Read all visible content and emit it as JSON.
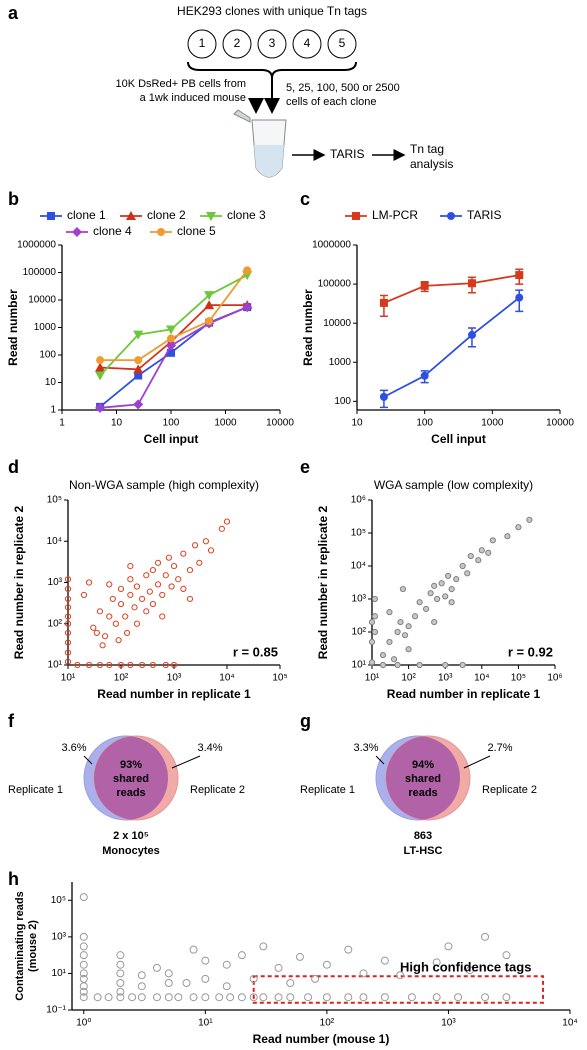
{
  "panel_labels": [
    "a",
    "b",
    "c",
    "d",
    "e",
    "f",
    "g",
    "h"
  ],
  "schematic": {
    "title": "HEK293 clones with unique Tn tags",
    "clones": [
      "1",
      "2",
      "3",
      "4",
      "5"
    ],
    "left_text": [
      "10K DsRed+ PB cells from",
      "a 1wk induced mouse"
    ],
    "right_text": [
      "5, 25, 100, 500 or 2500",
      "cells of each clone"
    ],
    "step1": "TARIS",
    "step2": [
      "Tn tag",
      "analysis"
    ]
  },
  "venn": [
    {
      "center": [
        "93%",
        "shared",
        "reads"
      ],
      "left_pct": "3.6%",
      "right_pct": "3.4%",
      "left_name": "Replicate 1",
      "right_name": "Replicate 2",
      "caption": [
        "2 x 10⁵",
        "Monocytes"
      ]
    },
    {
      "center": [
        "94%",
        "shared",
        "reads"
      ],
      "left_pct": "3.3%",
      "right_pct": "2.7%",
      "left_name": "Replicate 1",
      "right_name": "Replicate 2",
      "caption": [
        "863",
        "LT-HSC"
      ]
    }
  ],
  "chart_data": [
    {
      "type": "line",
      "xlabel": "Cell input",
      "ylabel": "Read number",
      "xscale": "log",
      "yscale": "log",
      "x": [
        5,
        25,
        100,
        500,
        2500
      ],
      "xlim": [
        1,
        10000
      ],
      "xticks": [
        1,
        10,
        100,
        1000,
        10000
      ],
      "ylim": [
        1,
        1000000
      ],
      "yticks": [
        1,
        10,
        100,
        1000,
        10000,
        100000,
        1000000
      ],
      "series": [
        {
          "name": "clone 1",
          "color": "#2f4fe0",
          "marker": "square",
          "values": [
            1.3,
            18,
            120,
            1500,
            5500
          ]
        },
        {
          "name": "clone 2",
          "color": "#d0301a",
          "marker": "triangle",
          "values": [
            35,
            30,
            300,
            6500,
            6500
          ]
        },
        {
          "name": "clone 3",
          "color": "#6cc83a",
          "marker": "invtriangle",
          "values": [
            18,
            550,
            850,
            15000,
            80000
          ]
        },
        {
          "name": "clone 4",
          "color": "#a040d0",
          "marker": "diamond",
          "values": [
            1.2,
            1.6,
            220,
            1400,
            5500
          ]
        },
        {
          "name": "clone 5",
          "color": "#f09a30",
          "marker": "circle",
          "values": [
            65,
            65,
            400,
            1700,
            120000
          ]
        }
      ]
    },
    {
      "type": "line",
      "xlabel": "Cell input",
      "ylabel": "Read number",
      "xscale": "log",
      "yscale": "log",
      "x": [
        25,
        100,
        500,
        2500
      ],
      "xlim": [
        10,
        10000
      ],
      "xticks": [
        10,
        100,
        1000,
        10000
      ],
      "ylim": [
        60,
        1000000
      ],
      "yticks": [
        100,
        1000,
        10000,
        100000,
        1000000
      ],
      "series": [
        {
          "name": "LM-PCR",
          "color": "#d6391c",
          "marker": "square",
          "values": [
            33000,
            90000,
            105000,
            170000
          ],
          "errors": [
            18000,
            25000,
            45000,
            70000
          ]
        },
        {
          "name": "TARIS",
          "color": "#2f4fe0",
          "marker": "circle",
          "values": [
            130,
            450,
            5000,
            45000
          ],
          "errors": [
            60,
            150,
            2500,
            25000
          ]
        }
      ]
    },
    {
      "type": "scatter",
      "title": "Non-WGA sample (high complexity)",
      "annotation": "r = 0.85",
      "xlabel": "Read number in replicate 1",
      "ylabel": "Read number in replicate 2",
      "xscale": "log",
      "yscale": "log",
      "color": "#e0401c",
      "fill": "none",
      "xlim": [
        10,
        100000
      ],
      "xticks": [
        {
          "value": 10,
          "label": "10¹"
        },
        {
          "value": 100,
          "label": "10²"
        },
        {
          "value": 1000,
          "label": "10³"
        },
        {
          "value": 10000,
          "label": "10⁴"
        },
        {
          "value": 100000,
          "label": "10⁵"
        }
      ],
      "ylim": [
        10,
        100000
      ],
      "yticks": [
        {
          "value": 10,
          "label": "10¹"
        },
        {
          "value": 100,
          "label": "10²"
        },
        {
          "value": 1000,
          "label": "10³"
        },
        {
          "value": 10000,
          "label": "10⁴"
        },
        {
          "value": 100000,
          "label": "10⁵"
        }
      ],
      "x": [
        30,
        40,
        50,
        60,
        70,
        80,
        100,
        100,
        120,
        150,
        150,
        180,
        200,
        200,
        250,
        300,
        300,
        350,
        400,
        400,
        500,
        500,
        600,
        700,
        800,
        900,
        1000,
        1200,
        1500,
        1500,
        2000,
        2500,
        3000,
        4000,
        5000,
        8000,
        10000,
        20,
        25,
        35,
        45,
        90,
        130,
        600,
        2000,
        150,
        60,
        10,
        10,
        10,
        10,
        10,
        10,
        10,
        10,
        10,
        10,
        15,
        25,
        40,
        60,
        100,
        150,
        250,
        400,
        700,
        1000
      ],
      "y": [
        80,
        200,
        50,
        150,
        400,
        100,
        300,
        700,
        150,
        500,
        1200,
        250,
        800,
        100,
        400,
        1500,
        200,
        600,
        2000,
        300,
        900,
        3000,
        500,
        1500,
        4000,
        800,
        2500,
        1200,
        5000,
        700,
        2000,
        8000,
        3000,
        10000,
        6000,
        20000,
        30000,
        500,
        1000,
        60,
        30,
        40,
        60,
        150,
        400,
        2500,
        900,
        12,
        20,
        35,
        60,
        100,
        150,
        250,
        400,
        700,
        1200,
        10,
        10,
        10,
        10,
        10,
        10,
        10,
        10,
        10,
        10
      ]
    },
    {
      "type": "scatter",
      "title": "WGA sample (low complexity)",
      "annotation": "r = 0.92",
      "xlabel": "Read number in replicate 1",
      "ylabel": "Read number in replicate 2",
      "xscale": "log",
      "yscale": "log",
      "color": "#808080",
      "fill": "#c8c8c8",
      "xlim": [
        10,
        1000000
      ],
      "xticks": [
        {
          "value": 10,
          "label": "10¹"
        },
        {
          "value": 100,
          "label": "10²"
        },
        {
          "value": 1000,
          "label": "10³"
        },
        {
          "value": 10000,
          "label": "10⁴"
        },
        {
          "value": 100000,
          "label": "10⁵"
        },
        {
          "value": 1000000,
          "label": "10⁶"
        }
      ],
      "ylim": [
        10,
        1000000
      ],
      "yticks": [
        {
          "value": 10,
          "label": "10¹"
        },
        {
          "value": 100,
          "label": "10²"
        },
        {
          "value": 1000,
          "label": "10³"
        },
        {
          "value": 10000,
          "label": "10⁴"
        },
        {
          "value": 100000,
          "label": "10⁵"
        },
        {
          "value": 1000000,
          "label": "10⁶"
        }
      ],
      "x": [
        20,
        30,
        40,
        50,
        60,
        80,
        100,
        100,
        150,
        200,
        300,
        400,
        500,
        600,
        800,
        1000,
        1200,
        1500,
        2000,
        3000,
        4000,
        5000,
        8000,
        10000,
        15000,
        20000,
        50000,
        100000,
        200000,
        12,
        12,
        12,
        20,
        50,
        200,
        1000,
        3000,
        10,
        10,
        10,
        500,
        1500,
        30,
        70
      ],
      "y": [
        20,
        50,
        15,
        100,
        200,
        80,
        30,
        150,
        300,
        800,
        500,
        1500,
        200,
        1000,
        3000,
        1200,
        5000,
        2000,
        4000,
        10000,
        6000,
        20000,
        15000,
        30000,
        25000,
        60000,
        80000,
        150000,
        250000,
        300,
        1000,
        100,
        10,
        10,
        10,
        10,
        10,
        50,
        200,
        12,
        2500,
        800,
        400,
        2000
      ]
    },
    {
      "type": "scatter",
      "xlabel": "Read number (mouse 1)",
      "ylabel": [
        "Contaminating reads",
        "(mouse 2)"
      ],
      "xscale": "log",
      "yscale": "log",
      "color": "#999999",
      "fill": "none",
      "annotation": "High confidence tags",
      "annotation_color": "#e0201c",
      "highlight": {
        "xlim": [
          25,
          6000
        ],
        "ylim": [
          0.25,
          7
        ]
      },
      "xlim": [
        0.8,
        10000
      ],
      "xticks": [
        {
          "value": 1,
          "label": "10⁰"
        },
        {
          "value": 10,
          "label": "10¹"
        },
        {
          "value": 100,
          "label": "10²"
        },
        {
          "value": 1000,
          "label": "10³"
        },
        {
          "value": 10000,
          "label": "10⁴"
        }
      ],
      "ylim": [
        0.1,
        1000000
      ],
      "yticks": [
        {
          "value": 0.1,
          "label": "10⁻¹"
        },
        {
          "value": 10,
          "label": "10¹"
        },
        {
          "value": 1000,
          "label": "10³"
        },
        {
          "value": 100000,
          "label": "10⁵"
        }
      ],
      "x": [
        1,
        1.3,
        1.6,
        2,
        2.5,
        3,
        4,
        5,
        6,
        8,
        10,
        13,
        16,
        20,
        25,
        30,
        40,
        50,
        70,
        100,
        150,
        200,
        300,
        500,
        800,
        1200,
        2000,
        3000,
        1,
        1,
        1,
        1,
        1,
        1,
        1,
        1,
        1,
        2,
        2,
        2,
        2,
        2,
        3,
        3,
        4,
        5,
        5,
        7,
        8,
        10,
        10,
        15,
        15,
        20,
        25,
        30,
        40,
        50,
        60,
        80,
        100,
        150,
        200,
        300,
        400,
        800,
        1000,
        1500,
        2000,
        3000
      ],
      "y": [
        0.5,
        0.5,
        0.5,
        0.5,
        0.5,
        0.5,
        0.5,
        0.5,
        0.5,
        0.5,
        0.5,
        0.5,
        0.5,
        0.5,
        0.5,
        0.5,
        0.5,
        0.5,
        0.5,
        0.5,
        0.5,
        0.5,
        0.5,
        0.5,
        0.5,
        0.5,
        0.5,
        0.5,
        1,
        2,
        5,
        10,
        30,
        100,
        300,
        1000,
        150000,
        1,
        3,
        10,
        30,
        100,
        2,
        8,
        20,
        3,
        10,
        3,
        200,
        5,
        50,
        2,
        30,
        100,
        5,
        300,
        20,
        3,
        80,
        5,
        30,
        200,
        10,
        50,
        8,
        40,
        300,
        15,
        1000,
        100
      ]
    }
  ]
}
